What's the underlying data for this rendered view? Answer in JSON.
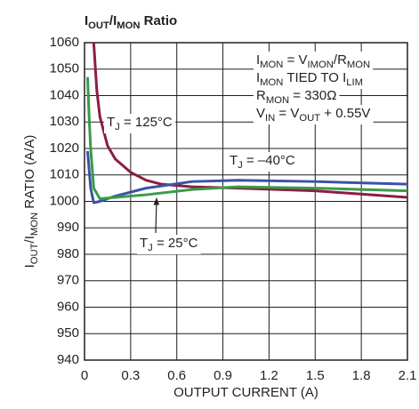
{
  "chart_data": {
    "type": "line",
    "title": [
      {
        "text": "I"
      },
      {
        "text": "OUT",
        "sub": true
      },
      {
        "text": "/I"
      },
      {
        "text": "MON",
        "sub": true
      },
      {
        "text": " Ratio"
      }
    ],
    "x_label": [
      {
        "text": "OUTPUT CURRENT (A)"
      }
    ],
    "y_label": [
      {
        "text": "I"
      },
      {
        "text": "OUT",
        "sub": true
      },
      {
        "text": "/I"
      },
      {
        "text": "MON",
        "sub": true
      },
      {
        "text": " RATIO (A/A)"
      }
    ],
    "xlim": [
      0,
      2.1
    ],
    "ylim": [
      940,
      1060
    ],
    "xticks": [
      0,
      0.3,
      0.6,
      0.9,
      1.2,
      1.5,
      1.8,
      2.1
    ],
    "yticks": [
      940,
      950,
      960,
      970,
      980,
      990,
      1000,
      1010,
      1020,
      1030,
      1040,
      1050,
      1060
    ],
    "grid": true,
    "series": [
      {
        "name": [
          {
            "text": "T"
          },
          {
            "text": "J",
            "sub": true
          },
          {
            "text": " = 125°C"
          }
        ],
        "color": "#8c1d40",
        "x": [
          0.06,
          0.08,
          0.1,
          0.15,
          0.2,
          0.3,
          0.4,
          0.5,
          0.7,
          1.0,
          1.5,
          2.1
        ],
        "values": [
          1060,
          1042,
          1032,
          1021,
          1016,
          1011,
          1008,
          1006.5,
          1005.5,
          1005,
          1004,
          1001.5
        ]
      },
      {
        "name": [
          {
            "text": "T"
          },
          {
            "text": "J",
            "sub": true
          },
          {
            "text": " = –40°C"
          }
        ],
        "color": "#3a53a4",
        "x": [
          0.02,
          0.03,
          0.04,
          0.06,
          0.1,
          0.2,
          0.4,
          0.7,
          1.0,
          1.5,
          2.1
        ],
        "values": [
          1019,
          1012,
          1005,
          999.5,
          1000,
          1002,
          1005,
          1007.5,
          1008,
          1007.5,
          1006.5
        ]
      },
      {
        "name": [
          {
            "text": "T"
          },
          {
            "text": "J",
            "sub": true
          },
          {
            "text": " = 25°C"
          }
        ],
        "color": "#3a9a4a",
        "x": [
          0.02,
          0.03,
          0.04,
          0.06,
          0.1,
          0.2,
          0.4,
          0.7,
          1.0,
          1.5,
          2.1
        ],
        "values": [
          1047,
          1032,
          1020,
          1005,
          1001,
          1001.5,
          1002.5,
          1004.5,
          1005.5,
          1005,
          1004
        ]
      }
    ],
    "annotations": [
      [
        {
          "text": "I"
        },
        {
          "text": "MON",
          "sub": true
        },
        {
          "text": " = V"
        },
        {
          "text": "IMON",
          "sub": true
        },
        {
          "text": "/R"
        },
        {
          "text": "MON",
          "sub": true
        }
      ],
      [
        {
          "text": "I"
        },
        {
          "text": "MON",
          "sub": true
        },
        {
          "text": " TIED TO I"
        },
        {
          "text": "LIM",
          "sub": true
        }
      ],
      [
        {
          "text": "R"
        },
        {
          "text": "MON",
          "sub": true
        },
        {
          "text": " = 330Ω"
        }
      ],
      [
        {
          "text": "V"
        },
        {
          "text": "IN",
          "sub": true
        },
        {
          "text": " = V"
        },
        {
          "text": "OUT",
          "sub": true
        },
        {
          "text": " + 0.55V"
        }
      ]
    ]
  }
}
